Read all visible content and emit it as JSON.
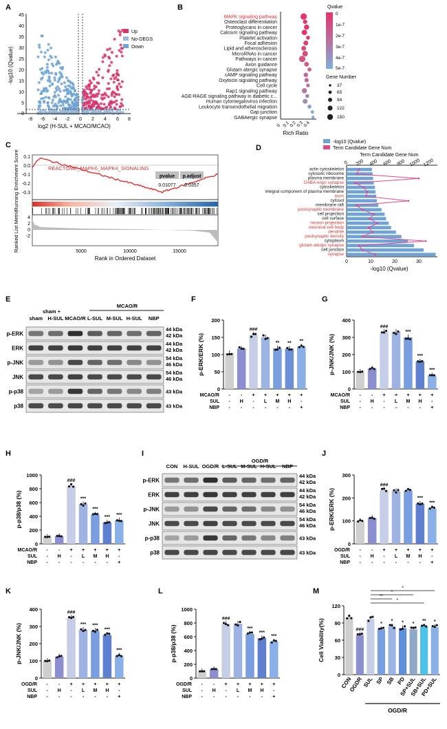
{
  "panel_letters": [
    "A",
    "B",
    "C",
    "D",
    "E",
    "F",
    "G",
    "H",
    "I",
    "J",
    "K",
    "L",
    "M"
  ],
  "colors": {
    "up": "#d6336c",
    "nodeg": "#9bb8d8",
    "down": "#6fa3d6",
    "bar_light": "#c5cee6",
    "bar_purple": "#8b8fd0",
    "bar_blue": "#5f8fd6",
    "bar_gray": "#cfcfcf",
    "pink": "#e0488a",
    "cyan": "#4fc1e9"
  },
  "panelA": {
    "legend": [
      "Up",
      "No-DEGS",
      "Down"
    ],
    "xlabel": "log2 (H-SUL + MCAO/MCAO)",
    "ylabel": "-log10 (Qvalue)",
    "xticks": [
      "-8",
      "-6",
      "-4",
      "-2",
      "0",
      "2",
      "4",
      "6",
      "8"
    ],
    "yticks": [
      "0",
      "5",
      "10",
      "15",
      "20",
      "25",
      "30",
      "35",
      "40",
      "45"
    ]
  },
  "panelB": {
    "pathways": [
      "MAPK signaling pathway",
      "Osteoclast differentiation",
      "Proteoglycans in cancer",
      "Calcium signaling pathway",
      "Platelet activation",
      "Focal adhesion",
      "Lipid and atherosclerosis",
      "MicroRNAs in cancer",
      "Pathways in cancer",
      "Axon guidance",
      "Glutam atergic synapse",
      "cAMP signaling pathway",
      "Oxytocin signaling pathway",
      "Cell cycle",
      "Rap1 signaling pathway",
      "AGE-RAGE signaling pathway in diabetic c...",
      "Human cytomegalovirus infection",
      "Leukocyte transendothelial migration",
      "Gap junction",
      "GABAergic synapse"
    ],
    "xlabel": "Rich Ratio",
    "xticks": [
      "0",
      "0.1",
      "0.2",
      "0.3",
      "0.4"
    ],
    "qvalue_title": "Qvalue",
    "qvalue_ticks": [
      "0",
      "1e-7",
      "2e-7",
      "3e-7",
      "4e-7",
      "5e-7"
    ],
    "gene_title": "Gene Number",
    "gene_ticks": [
      "37",
      "65",
      "94",
      "122",
      "150"
    ]
  },
  "panelC": {
    "title": "REACTOME_MAPK6_MAPK4_SIGNALING",
    "table_headers": [
      "pvalue",
      "p.adjust"
    ],
    "table_values": [
      "0.01077",
      "0.0357"
    ],
    "ylabel_top": "Running Enrichment Score",
    "ylabel_bottom": "Ranked List Metric",
    "yticks_top": [
      "0.1",
      "0.0",
      "-0.1",
      "-0.2",
      "-0.3"
    ],
    "yticks_bottom": [
      "4",
      "2",
      "0",
      "-2"
    ],
    "xticks": [
      "5000",
      "10000",
      "15000"
    ],
    "xlabel": "Rank in Ordered Dataset"
  },
  "panelD": {
    "legend": [
      "-log10 (Qvalue)",
      "Term Candidate Gene Num"
    ],
    "top_axis_title": "Term Candidate Gene Num",
    "top_ticks": [
      "0",
      "200",
      "400",
      "600",
      "800",
      "1000",
      "1200"
    ],
    "bottom_ticks": [
      "0",
      "10",
      "20",
      "30"
    ],
    "xlabel": "-log10 (Qvalue)",
    "terms": [
      "actin cytoskeleton",
      "cytosolic ribosome",
      "plasma membrane",
      "GABA-ergic synapse",
      "cytoskeleton",
      "integral component of plasma membrane",
      "axon",
      "cytosol",
      "membrane raft",
      "postsynaptic membrane",
      "cell projection",
      "cell surface",
      "neuron projection",
      "neuronal cell body",
      "dendrite",
      "postsynaptic density",
      "cytoplasm",
      "glutam atergic synapse",
      "cell junction",
      "synapse"
    ]
  },
  "panelE": {
    "sham_plus": "sham +",
    "group_label": "MCAO/R",
    "lanes": [
      "sham",
      "H-SUL",
      "MCAO/R",
      "L-SUL",
      "M-SUL",
      "H-SUL",
      "NBP"
    ],
    "bands": [
      {
        "name": "p-ERK",
        "kda": [
          "44 kDa",
          "42 kDa"
        ]
      },
      {
        "name": "ERK",
        "kda": [
          "44 kDa",
          "42 kDa"
        ]
      },
      {
        "name": "p-JNK",
        "kda": [
          "54 kDa",
          "46 kDa"
        ]
      },
      {
        "name": "JNK",
        "kda": [
          "54 kDa",
          "46 kDa"
        ]
      },
      {
        "name": "p-p38",
        "kda": [
          "43 kDa"
        ]
      },
      {
        "name": "p38",
        "kda": [
          "43 kDa"
        ]
      }
    ]
  },
  "panelI": {
    "group_label": "OGD/R",
    "lanes": [
      "CON",
      "H-SUL",
      "OGD/R",
      "L-SUL",
      "M-SUL",
      "H-SUL",
      "NBP"
    ],
    "bands": [
      {
        "name": "p-ERK",
        "kda": [
          "44 kDa",
          "42 kDa"
        ]
      },
      {
        "name": "ERK",
        "kda": [
          "44 kDa",
          "42 kDa"
        ]
      },
      {
        "name": "p-JNK",
        "kda": [
          "54 kDa",
          "46 kDa"
        ]
      },
      {
        "name": "JNK",
        "kda": [
          "54 kDa",
          "46 kDa"
        ]
      },
      {
        "name": "p-p38",
        "kda": [
          "43 kDa"
        ]
      },
      {
        "name": "p38",
        "kda": [
          "43 kDa"
        ]
      }
    ]
  },
  "chart_data": [
    {
      "id": "F",
      "type": "bar",
      "ylabel": "p-ERK/ERK (%)",
      "ylim": [
        0,
        200
      ],
      "yticks": [
        "0",
        "50",
        "100",
        "150",
        "200"
      ],
      "values": [
        104,
        117,
        157,
        150,
        118,
        117,
        123
      ],
      "sig": [
        "",
        "",
        "###",
        "",
        "**",
        "**",
        "**"
      ],
      "colors": [
        "#cfcfcf",
        "#8b8fd0",
        "#c5cee6",
        "#9db4e3",
        "#7a9fe0",
        "#6b90d8",
        "#8bb0e8"
      ],
      "row_labels": [
        "MCAO/R",
        "SUL",
        "NBP"
      ],
      "rows": [
        [
          "-",
          "-",
          "+",
          "+",
          "+",
          "+",
          "+"
        ],
        [
          "-",
          "H",
          "-",
          "L",
          "M",
          "H",
          "-"
        ],
        [
          "-",
          "-",
          "-",
          "-",
          "-",
          "-",
          "+"
        ]
      ]
    },
    {
      "id": "G",
      "type": "bar",
      "ylabel": "p-JNK/JNK (%)",
      "ylim": [
        0,
        400
      ],
      "yticks": [
        "0",
        "100",
        "200",
        "300",
        "400"
      ],
      "values": [
        100,
        118,
        330,
        332,
        300,
        160,
        78
      ],
      "sig": [
        "",
        "",
        "###",
        "",
        "***",
        "***",
        "***"
      ],
      "colors": [
        "#cfcfcf",
        "#8b8fd0",
        "#c5cee6",
        "#9db4e3",
        "#7a9fe0",
        "#5f7fd0",
        "#8bb0e8"
      ],
      "row_labels": [
        "MCAO/R",
        "SUL",
        "NBP"
      ],
      "rows": [
        [
          "-",
          "-",
          "+",
          "+",
          "+",
          "+",
          "+"
        ],
        [
          "-",
          "H",
          "-",
          "L",
          "M",
          "H",
          "-"
        ],
        [
          "-",
          "-",
          "-",
          "-",
          "-",
          "-",
          "+"
        ]
      ]
    },
    {
      "id": "H",
      "type": "bar",
      "ylabel": "p-p38/p38 (%)",
      "ylim": [
        0,
        1000
      ],
      "yticks": [
        "0",
        "200",
        "400",
        "600",
        "800",
        "1000"
      ],
      "values": [
        102,
        112,
        840,
        575,
        425,
        310,
        340
      ],
      "sig": [
        "",
        "",
        "###",
        "***",
        "***",
        "***",
        "***"
      ],
      "colors": [
        "#cfcfcf",
        "#8b8fd0",
        "#c5cee6",
        "#9db4e3",
        "#7a9fe0",
        "#5f7fd0",
        "#8bb0e8"
      ],
      "row_labels": [
        "MCAO/R",
        "SUL",
        "NBP"
      ],
      "rows": [
        [
          "-",
          "-",
          "+",
          "+",
          "+",
          "+",
          "+"
        ],
        [
          "-",
          "H",
          "-",
          "L",
          "M",
          "H",
          "-"
        ],
        [
          "-",
          "-",
          "-",
          "-",
          "-",
          "-",
          "+"
        ]
      ]
    },
    {
      "id": "J",
      "type": "bar",
      "ylabel": "p-ERK/ERK (%)",
      "ylim": [
        0,
        300
      ],
      "yticks": [
        "0",
        "100",
        "200",
        "300"
      ],
      "values": [
        100,
        113,
        233,
        230,
        232,
        175,
        155
      ],
      "sig": [
        "",
        "",
        "###",
        "",
        "",
        "***",
        "***"
      ],
      "colors": [
        "#cfcfcf",
        "#8b8fd0",
        "#c5cee6",
        "#9db4e3",
        "#7a9fe0",
        "#5f7fd0",
        "#8bb0e8"
      ],
      "row_labels": [
        "OGD/R",
        "SUL",
        "NBP"
      ],
      "rows": [
        [
          "-",
          "-",
          "+",
          "+",
          "+",
          "+",
          "+"
        ],
        [
          "-",
          "H",
          "-",
          "L",
          "M",
          "H",
          "-"
        ],
        [
          "-",
          "-",
          "-",
          "-",
          "-",
          "-",
          "+"
        ]
      ]
    },
    {
      "id": "K",
      "type": "bar",
      "ylabel": "p-JNK/JNK (%)",
      "ylim": [
        0,
        400
      ],
      "yticks": [
        "0",
        "100",
        "200",
        "300",
        "400"
      ],
      "values": [
        100,
        125,
        350,
        280,
        275,
        250,
        130
      ],
      "sig": [
        "",
        "",
        "###",
        "***",
        "***",
        "***",
        "***"
      ],
      "colors": [
        "#cfcfcf",
        "#8b8fd0",
        "#c5cee6",
        "#9db4e3",
        "#7a9fe0",
        "#5f7fd0",
        "#8bb0e8"
      ],
      "row_labels": [
        "OGD/R",
        "SUL",
        "NBP"
      ],
      "rows": [
        [
          "-",
          "-",
          "+",
          "+",
          "+",
          "+",
          "+"
        ],
        [
          "-",
          "H",
          "-",
          "L",
          "M",
          "H",
          "-"
        ],
        [
          "-",
          "-",
          "-",
          "-",
          "-",
          "-",
          "+"
        ]
      ]
    },
    {
      "id": "L",
      "type": "bar",
      "ylabel": "p-p38/p38 (%)",
      "ylim": [
        0,
        1000
      ],
      "yticks": [
        "0",
        "200",
        "400",
        "600",
        "800",
        "1000"
      ],
      "values": [
        100,
        130,
        785,
        790,
        640,
        580,
        530
      ],
      "sig": [
        "",
        "",
        "###",
        "",
        "***",
        "***",
        "***"
      ],
      "colors": [
        "#cfcfcf",
        "#8b8fd0",
        "#c5cee6",
        "#9db4e3",
        "#7a9fe0",
        "#5f7fd0",
        "#8bb0e8"
      ],
      "row_labels": [
        "OGD/R",
        "SUL",
        "NBP"
      ],
      "rows": [
        [
          "-",
          "-",
          "+",
          "+",
          "+",
          "+",
          "+"
        ],
        [
          "-",
          "H",
          "-",
          "L",
          "M",
          "H",
          "-"
        ],
        [
          "-",
          "-",
          "-",
          "-",
          "-",
          "-",
          "+"
        ]
      ]
    },
    {
      "id": "M",
      "type": "bar",
      "ylabel": "Cell Viability(%)",
      "ylim": [
        0,
        120
      ],
      "yticks": [
        "0",
        "30",
        "60",
        "90",
        "120"
      ],
      "categories": [
        "CON",
        "OGDR",
        "SUL",
        "SP",
        "SB",
        "PD",
        "SP+SUL",
        "SB+SUL",
        "PD+SUL"
      ],
      "values": [
        100,
        69,
        97,
        79,
        84,
        81,
        79,
        84,
        83
      ],
      "sig": [
        "",
        "###",
        "",
        "*",
        "*",
        "*",
        "*",
        "**",
        "*"
      ],
      "colors": [
        "#cfcfcf",
        "#8b8fd0",
        "#c5cee6",
        "#7a9fe0",
        "#9db4e3",
        "#5f8fd6",
        "#8fa8c8",
        "#4fc1e9",
        "#8bb0e8"
      ],
      "brackets": [
        "*",
        "*",
        "**",
        "*"
      ],
      "group_label": "OGD/R"
    }
  ]
}
